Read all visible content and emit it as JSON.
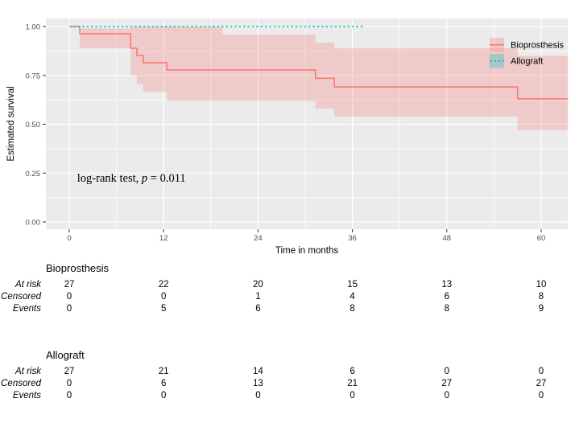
{
  "chart_data": {
    "type": "line",
    "subtype": "kaplan-meier-step",
    "title": "",
    "xlabel": "Time in months",
    "ylabel": "Estimated survival",
    "xlim": [
      -3.0,
      63.4
    ],
    "ylim": [
      -0.035,
      1.04
    ],
    "x_ticks": [
      0,
      12,
      24,
      36,
      48,
      60
    ],
    "y_ticks": [
      0.0,
      0.25,
      0.5,
      0.75,
      1.0
    ],
    "y_tick_labels": [
      "0.00",
      "0.25",
      "0.50",
      "0.75",
      "1.00"
    ],
    "x_minor_gridlines": [
      6,
      18,
      30,
      42,
      54
    ],
    "y_minor_gridlines": [
      0.125,
      0.375,
      0.625,
      0.875
    ],
    "grid": "on",
    "panel_color": "#EBEBEB",
    "gridline_color": "#FFFFFF",
    "legend_position": "inside-top-right",
    "annotation": {
      "full_text": "log-rank test, p = 0.011",
      "prefix": "log-rank test, ",
      "italic_part": "p",
      "suffix": " = 0.011",
      "x_month": 1.0,
      "y_value": 0.205
    },
    "series": [
      {
        "name": "Bioprosthesis",
        "color": "#F8766D",
        "line_style": "solid",
        "band_fill": "rgba(248,118,109,0.27)",
        "km_steps": [
          [
            0,
            1.0
          ],
          [
            1.33,
            0.963
          ],
          [
            7.8,
            0.889
          ],
          [
            8.6,
            0.852
          ],
          [
            9.4,
            0.815
          ],
          [
            12.4,
            0.778
          ],
          [
            31.3,
            0.735
          ],
          [
            33.7,
            0.691
          ],
          [
            57.0,
            0.63
          ],
          [
            63.4,
            0.63
          ]
        ],
        "conf_band": [
          [
            1.33,
            0.99,
            0.889
          ],
          [
            7.8,
            1.0,
            0.75
          ],
          [
            8.6,
            1.0,
            0.705
          ],
          [
            9.4,
            1.0,
            0.665
          ],
          [
            12.4,
            1.0,
            0.62
          ],
          [
            19.5,
            0.959,
            0.62
          ],
          [
            31.3,
            0.918,
            0.58
          ],
          [
            33.7,
            0.889,
            0.539
          ],
          [
            57.0,
            0.85,
            0.469
          ],
          [
            63.4,
            0.85,
            0.469
          ]
        ]
      },
      {
        "name": "Allograft",
        "color": "#00BFC4",
        "line_style": "dashed",
        "band_fill": "rgba(0,191,196,0.3)",
        "km_steps": [
          [
            0,
            1.0
          ],
          [
            37.6,
            1.0
          ]
        ],
        "conf_band": []
      }
    ]
  },
  "legend": [
    {
      "label": "Bioprosthesis",
      "line_style": "solid",
      "color": "#F8766D",
      "key_fill": "rgba(248,118,109,0.3)"
    },
    {
      "label": "Allograft",
      "line_style": "dashed",
      "color": "#00BFC4",
      "key_fill": "rgba(0,191,196,0.3)"
    }
  ],
  "risk_tables": [
    {
      "title": "Bioprosthesis",
      "columns_months": [
        0,
        12,
        24,
        36,
        48,
        60
      ],
      "rows": [
        {
          "label": "At risk",
          "values": [
            "27",
            "22",
            "20",
            "15",
            "13",
            "10"
          ]
        },
        {
          "label": "Censored",
          "values": [
            "0",
            "0",
            "1",
            "4",
            "6",
            "8"
          ]
        },
        {
          "label": "Events",
          "values": [
            "0",
            "5",
            "6",
            "8",
            "8",
            "9"
          ]
        }
      ]
    },
    {
      "title": "Allograft",
      "columns_months": [
        0,
        12,
        24,
        36,
        48,
        60
      ],
      "rows": [
        {
          "label": "At risk",
          "values": [
            "27",
            "21",
            "14",
            "6",
            "0",
            "0"
          ]
        },
        {
          "label": "Censored",
          "values": [
            "0",
            "6",
            "13",
            "21",
            "27",
            "27"
          ]
        },
        {
          "label": "Events",
          "values": [
            "0",
            "0",
            "0",
            "0",
            "0",
            "0"
          ]
        }
      ]
    }
  ]
}
